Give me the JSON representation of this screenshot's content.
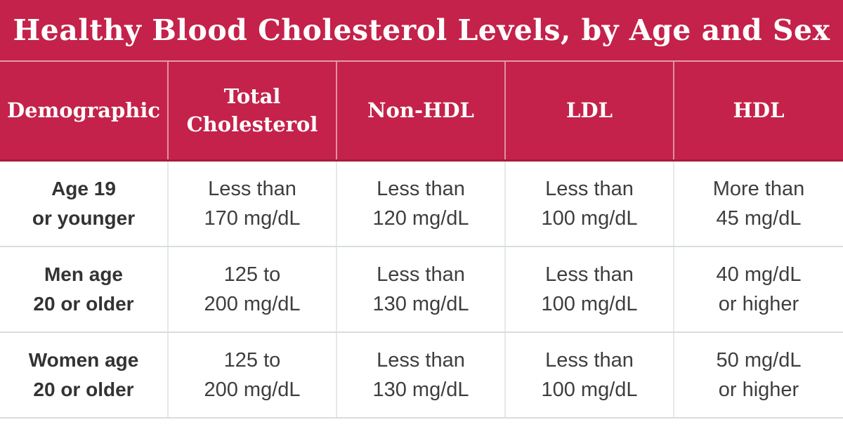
{
  "title": "Healthy Blood Cholesterol Levels, by Age and Sex",
  "colors": {
    "band_red": "#c4224a",
    "band_red_dark_edge": "#a51c3e",
    "header_divider_white": "rgba(255,255,255,0.5)",
    "row_divider_gray": "#d8dedc",
    "cell_divider_gray": "#e4e9ea",
    "title_text": "#ffffff",
    "data_text": "#3e3e3e",
    "demographic_text": "#333333"
  },
  "header": {
    "columns": [
      "Demographic",
      "Total\nCholesterol",
      "Non-HDL",
      "LDL",
      "HDL"
    ]
  },
  "rows": [
    {
      "cells": [
        "Age 19\nor younger",
        "Less than\n170 mg/dL",
        "Less than\n120 mg/dL",
        "Less than\n100 mg/dL",
        "More than\n45 mg/dL"
      ]
    },
    {
      "cells": [
        "Men age\n20 or older",
        "125 to\n200 mg/dL",
        "Less than\n130 mg/dL",
        "Less than\n100 mg/dL",
        "40 mg/dL\nor higher"
      ]
    },
    {
      "cells": [
        "Women age\n20 or older",
        "125 to\n200 mg/dL",
        "Less than\n130 mg/dL",
        "Less than\n100 mg/dL",
        "50 mg/dL\nor higher"
      ]
    }
  ],
  "chart_data": {
    "type": "table",
    "title": "Healthy Blood Cholesterol Levels, by Age and Sex",
    "columns": [
      "Demographic",
      "Total Cholesterol",
      "Non-HDL",
      "LDL",
      "HDL"
    ],
    "rows": [
      [
        "Age 19 or younger",
        "Less than 170 mg/dL",
        "Less than 120 mg/dL",
        "Less than 100 mg/dL",
        "More than 45 mg/dL"
      ],
      [
        "Men age 20 or older",
        "125 to 200 mg/dL",
        "Less than 130 mg/dL",
        "Less than 100 mg/dL",
        "40 mg/dL or higher"
      ],
      [
        "Women age 20 or older",
        "125 to 200 mg/dL",
        "Less than 130 mg/dL",
        "Less than 100 mg/dL",
        "50 mg/dL or higher"
      ]
    ],
    "units": "mg/dL",
    "layout": "header band and column-header band in crimson with white serif text; three white data rows separated by light gray rules"
  }
}
